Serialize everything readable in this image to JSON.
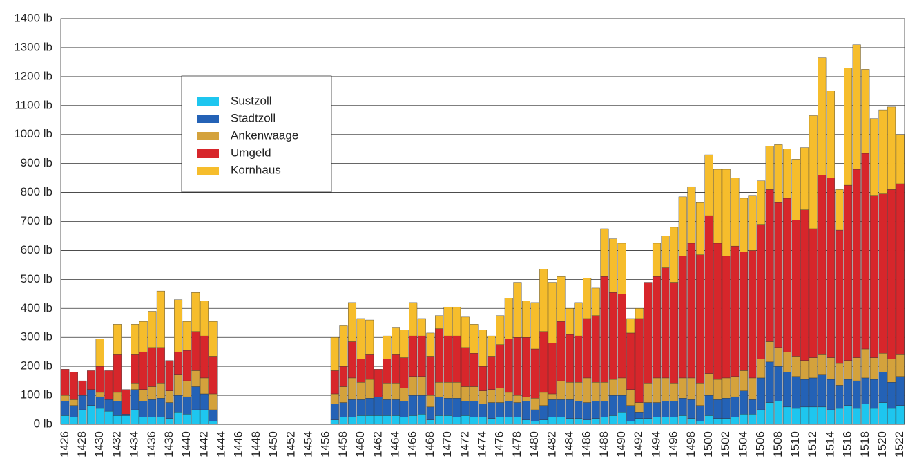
{
  "chart_data": {
    "type": "stacked_bar",
    "categories": [
      "1426",
      null,
      "1428",
      null,
      "1430",
      null,
      "1432",
      null,
      "1434",
      null,
      "1436",
      null,
      "1438",
      null,
      "1440",
      null,
      "1442",
      null,
      "1444",
      null,
      "1446",
      null,
      "1448",
      null,
      "1450",
      null,
      "1452",
      null,
      "1454",
      null,
      "1456",
      null,
      "1458",
      null,
      "1460",
      null,
      "1462",
      null,
      "1464",
      null,
      "1466",
      null,
      "1468",
      null,
      "1470",
      null,
      "1472",
      null,
      "1474",
      null,
      "1476",
      null,
      "1478",
      null,
      "1480",
      null,
      "1482",
      null,
      "1484",
      null,
      "1486",
      null,
      "1488",
      null,
      "1490",
      null,
      "1492",
      null,
      "1494",
      null,
      "1496",
      null,
      "1498",
      null,
      "1500",
      null,
      "1502",
      null,
      "1504",
      null,
      "1506",
      null,
      "1508",
      null,
      "1510",
      null,
      "1512",
      null,
      "1514",
      null,
      "1516",
      null,
      "1518",
      null,
      "1520",
      null,
      "1522"
    ],
    "series": [
      {
        "name": "Sustzoll",
        "color": "#1ec6ef",
        "values": [
          30,
          25,
          50,
          65,
          55,
          45,
          30,
          30,
          50,
          25,
          25,
          25,
          20,
          40,
          35,
          50,
          50,
          10,
          null,
          null,
          null,
          null,
          null,
          null,
          null,
          null,
          null,
          null,
          null,
          null,
          null,
          15,
          25,
          25,
          30,
          30,
          30,
          30,
          30,
          25,
          30,
          35,
          15,
          30,
          30,
          25,
          30,
          25,
          25,
          20,
          25,
          25,
          25,
          15,
          10,
          15,
          25,
          25,
          20,
          20,
          15,
          20,
          25,
          30,
          40,
          10,
          20,
          20,
          25,
          25,
          25,
          30,
          20,
          10,
          30,
          20,
          20,
          25,
          35,
          35,
          50,
          75,
          80,
          60,
          55,
          60,
          60,
          60,
          50,
          55,
          65,
          55,
          70,
          55,
          75,
          55,
          65
        ]
      },
      {
        "name": "Stadtzoll",
        "color": "#2462b6",
        "values": [
          50,
          40,
          50,
          55,
          40,
          40,
          50,
          5,
          70,
          55,
          60,
          65,
          55,
          60,
          60,
          80,
          55,
          40,
          null,
          null,
          null,
          null,
          null,
          null,
          null,
          null,
          null,
          null,
          null,
          null,
          null,
          55,
          50,
          60,
          55,
          60,
          65,
          55,
          55,
          55,
          70,
          65,
          45,
          65,
          60,
          65,
          50,
          55,
          45,
          55,
          50,
          55,
          50,
          65,
          40,
          50,
          60,
          60,
          65,
          60,
          60,
          60,
          55,
          70,
          60,
          55,
          20,
          55,
          50,
          55,
          55,
          60,
          65,
          55,
          70,
          65,
          70,
          70,
          80,
          50,
          110,
          140,
          120,
          120,
          110,
          95,
          100,
          110,
          105,
          80,
          90,
          95,
          90,
          100,
          105,
          90,
          100
        ]
      },
      {
        "name": "Ankenwaage",
        "color": "#d4a23c",
        "values": [
          20,
          20,
          0,
          0,
          15,
          0,
          30,
          0,
          20,
          40,
          45,
          50,
          40,
          70,
          55,
          55,
          55,
          55,
          null,
          null,
          null,
          null,
          null,
          null,
          null,
          null,
          null,
          null,
          null,
          null,
          null,
          35,
          55,
          75,
          60,
          65,
          0,
          55,
          55,
          45,
          65,
          65,
          40,
          50,
          55,
          55,
          50,
          50,
          45,
          45,
          50,
          30,
          25,
          15,
          40,
          45,
          20,
          65,
          60,
          65,
          85,
          65,
          65,
          55,
          60,
          55,
          35,
          65,
          85,
          80,
          60,
          70,
          75,
          75,
          75,
          70,
          70,
          70,
          70,
          75,
          65,
          70,
          65,
          70,
          70,
          65,
          70,
          70,
          75,
          75,
          65,
          80,
          100,
          75,
          65,
          80,
          75
        ]
      },
      {
        "name": "Umgeld",
        "color": "#d7262b",
        "values": [
          90,
          95,
          50,
          65,
          90,
          100,
          130,
          85,
          100,
          130,
          135,
          125,
          105,
          80,
          105,
          135,
          145,
          130,
          null,
          null,
          null,
          null,
          null,
          null,
          null,
          null,
          null,
          null,
          null,
          null,
          null,
          80,
          70,
          125,
          80,
          85,
          95,
          85,
          100,
          105,
          140,
          140,
          135,
          185,
          160,
          160,
          135,
          115,
          85,
          115,
          150,
          185,
          200,
          205,
          170,
          210,
          175,
          205,
          165,
          160,
          205,
          230,
          365,
          300,
          290,
          195,
          290,
          350,
          350,
          380,
          350,
          420,
          465,
          445,
          545,
          470,
          420,
          450,
          410,
          440,
          465,
          525,
          500,
          530,
          470,
          520,
          445,
          620,
          620,
          460,
          605,
          650,
          675,
          560,
          550,
          585,
          590
        ]
      },
      {
        "name": "Kornhaus",
        "color": "#f6bd2c",
        "values": [
          0,
          0,
          0,
          0,
          95,
          0,
          105,
          0,
          105,
          105,
          125,
          195,
          0,
          180,
          100,
          135,
          120,
          120,
          null,
          null,
          null,
          null,
          null,
          null,
          null,
          null,
          null,
          null,
          null,
          null,
          null,
          115,
          140,
          135,
          140,
          120,
          0,
          80,
          95,
          95,
          115,
          60,
          80,
          45,
          100,
          100,
          105,
          100,
          125,
          70,
          100,
          140,
          190,
          125,
          160,
          215,
          210,
          155,
          90,
          115,
          140,
          95,
          165,
          185,
          175,
          50,
          35,
          0,
          115,
          110,
          190,
          205,
          195,
          180,
          210,
          255,
          300,
          235,
          185,
          190,
          150,
          150,
          200,
          170,
          210,
          215,
          390,
          405,
          300,
          140,
          405,
          430,
          290,
          265,
          290,
          285,
          170
        ]
      }
    ],
    "ylim": [
      0,
      1400
    ],
    "yticks": [
      {
        "value": 0,
        "label": "0 lb"
      },
      {
        "value": 100,
        "label": "100 lb"
      },
      {
        "value": 200,
        "label": "200 lb"
      },
      {
        "value": 300,
        "label": "300 lb"
      },
      {
        "value": 400,
        "label": "400 lb"
      },
      {
        "value": 500,
        "label": "500 lb"
      },
      {
        "value": 600,
        "label": "600 lb"
      },
      {
        "value": 700,
        "label": "700 lb"
      },
      {
        "value": 800,
        "label": "800 lb"
      },
      {
        "value": 900,
        "label": "900 lb"
      },
      {
        "value": 1000,
        "label": "1000 lb"
      },
      {
        "value": 1100,
        "label": "1100 lb"
      },
      {
        "value": 1200,
        "label": "1200 lb"
      },
      {
        "value": 1300,
        "label": "1300 lb"
      },
      {
        "value": 1400,
        "label": "1400 lb"
      }
    ],
    "grid": true
  }
}
